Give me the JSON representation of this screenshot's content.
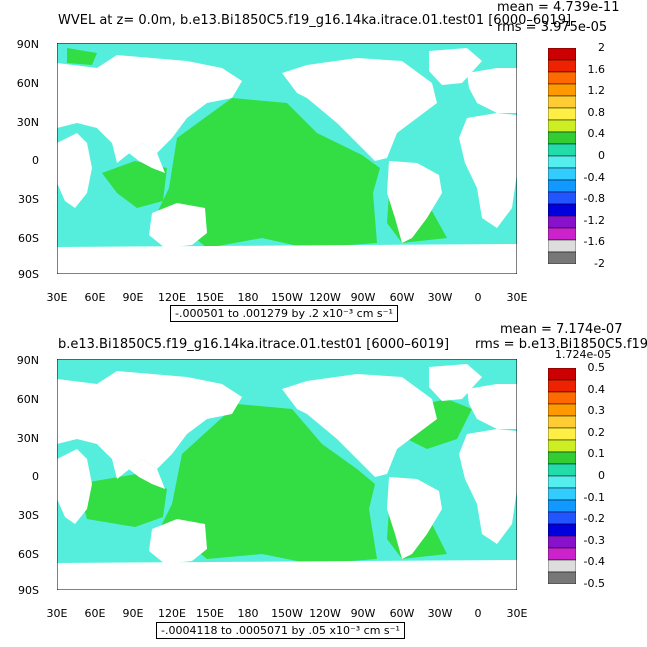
{
  "panels": [
    {
      "title": "WVEL at z=    0.0m, b.e13.Bi1850C5.f19_g16.14ka.itrace.01.test01 [6000–6019]",
      "mean_label": "mean = 4.739e-11",
      "rms_label": "rms = 3.975e-05",
      "range_text": "-.000501 to .001279 by .2 x10⁻³ cm s⁻¹",
      "colorbar_labels": [
        "2",
        "1.6",
        "1.2",
        "0.8",
        "0.4",
        "0",
        "-0.4",
        "-0.8",
        "-1.2",
        "-1.6",
        "-2"
      ]
    },
    {
      "title": "b.e13.Bi1850C5.f19_g16.14ka.itrace.01.test01 [6000–6019]",
      "mean_label": "mean = 7.174e-07",
      "rms_label": "rms = b.e13.Bi1850C5.f19",
      "rms_value": "1.724e-05",
      "range_text": "-.0004118 to .0005071 by .05 x10⁻³ cm s⁻¹",
      "colorbar_labels": [
        "0.5",
        "0.4",
        "0.3",
        "0.2",
        "0.1",
        "0",
        "-0.1",
        "-0.2",
        "-0.3",
        "-0.4",
        "-0.5"
      ]
    }
  ],
  "lat_labels": [
    "90N",
    "60N",
    "30N",
    "0",
    "30S",
    "60S",
    "90S"
  ],
  "lon_labels": [
    "30E",
    "60E",
    "90E",
    "120E",
    "150E",
    "180",
    "150W",
    "120W",
    "90W",
    "60W",
    "30W",
    "0",
    "30E"
  ],
  "colorbar_colors": [
    "#cc0000",
    "#ee2200",
    "#ff6a00",
    "#ff9900",
    "#ffcc33",
    "#ffee44",
    "#ccee22",
    "#33cc33",
    "#22ddaa",
    "#55eeee",
    "#33ccff",
    "#1199ff",
    "#2255ff",
    "#0000dd",
    "#8811cc",
    "#cc22cc",
    "#dddddd",
    "#777777"
  ],
  "map_colors": {
    "ocean": "#55eedd",
    "green": "#33dd44",
    "land": "#ffffff"
  }
}
